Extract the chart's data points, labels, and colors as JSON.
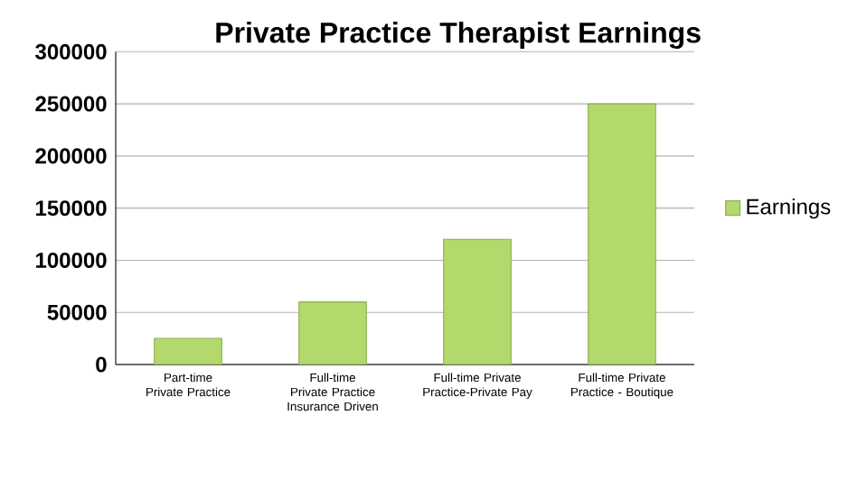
{
  "chart_data": {
    "type": "bar",
    "title": "Private Practice Therapist Earnings",
    "categories": [
      "Part-time Private Practice",
      "Full-time Private Practice Insurance Driven",
      "Full-time Private Practice-Private Pay",
      "Full-time Private Practice - Boutique"
    ],
    "series": [
      {
        "name": "Earnings",
        "color": "#b3d86c",
        "values": [
          25000,
          60000,
          120000,
          250000
        ]
      }
    ],
    "ylim": [
      0,
      300000
    ],
    "yticks": [
      0,
      50000,
      100000,
      150000,
      200000,
      250000,
      300000
    ],
    "grid": "y",
    "legend": "right"
  }
}
